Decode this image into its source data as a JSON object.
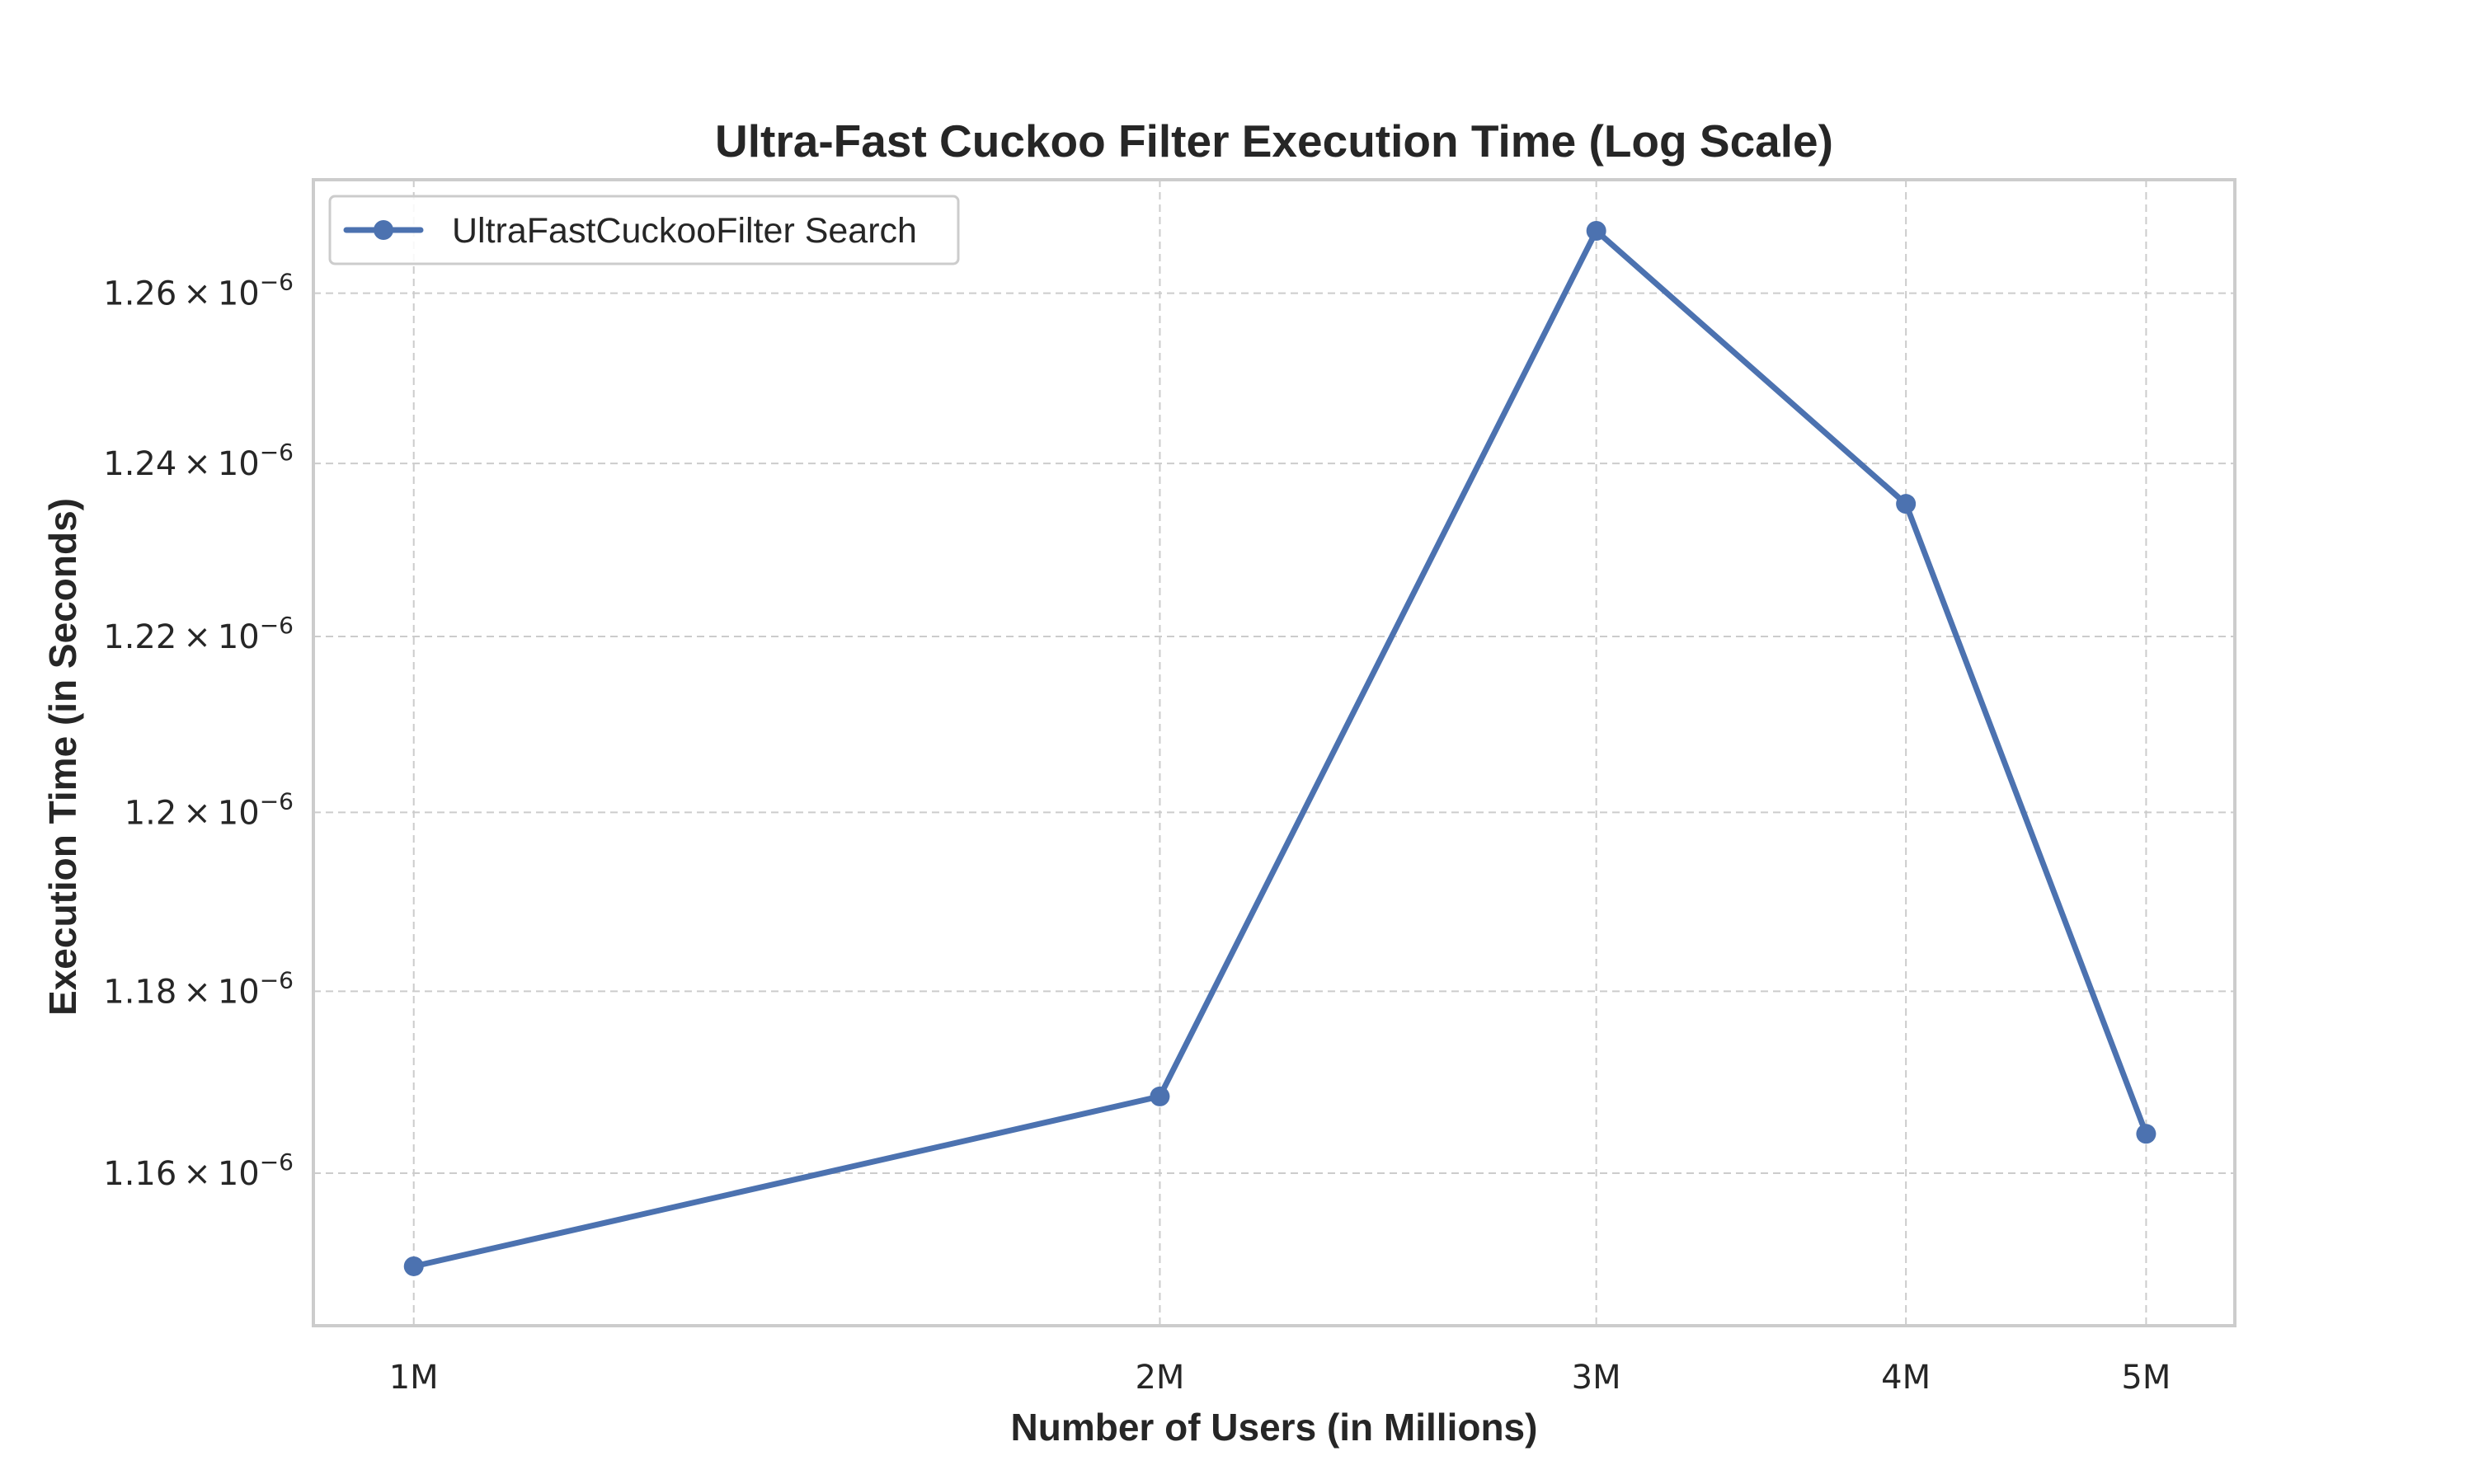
{
  "chart_data": {
    "type": "line",
    "title": "Ultra-Fast Cuckoo Filter Execution Time (Log Scale)",
    "xlabel": "Number of Users (in Millions)",
    "ylabel": "Execution Time (in Seconds)",
    "x": [
      1000000,
      2000000,
      3000000,
      4000000,
      5000000
    ],
    "x_tick_labels": [
      "1M",
      "2M",
      "3M",
      "4M",
      "5M"
    ],
    "x_scale": "log",
    "y_scale": "log",
    "y_ticks": [
      1.16e-06,
      1.18e-06,
      1.2e-06,
      1.22e-06,
      1.24e-06,
      1.26e-06
    ],
    "y_tick_mantissas": [
      "1.16",
      "1.18",
      "1.2",
      "1.22",
      "1.24",
      "1.26"
    ],
    "y_tick_exponent": "−6",
    "ylim": [
      1.1435e-06,
      1.2735e-06
    ],
    "grid": true,
    "legend_position": "top-left",
    "series": [
      {
        "name": "UltraFastCuckooFilter Search",
        "color": "#4c72b0",
        "marker": "circle",
        "values": [
          1.1499e-06,
          1.1684e-06,
          1.2674e-06,
          1.2353e-06,
          1.1643e-06
        ]
      }
    ]
  }
}
